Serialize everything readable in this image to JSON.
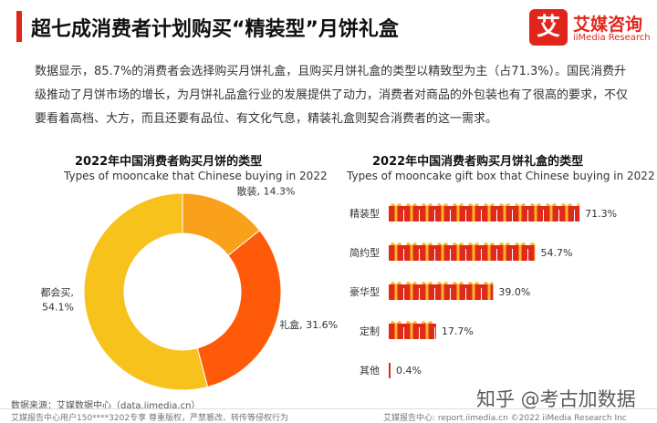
{
  "header": {
    "title": "超七成消费者计划购买“精装型”月饼礼盒",
    "logo_mark": "艾",
    "logo_cn": "艾媒咨询",
    "logo_en": "iiMedia Research"
  },
  "intro": "数据显示，85.7%的消费者会选择购买月饼礼盒，且购买月饼礼盒的类型以精致型为主（占71.3%）。国民消费升级推动了月饼市场的增长，为月饼礼品盒行业的发展提供了动力，消费者对商品的外包装也有了很高的要求，不仅要看着高档、大方，而且还要有品位、有文化气息，精装礼盒则契合消费者的这一需求。",
  "colors": {
    "accent": "#e1251b",
    "orange": "#ff5a0a",
    "light_orange": "#f9a11b",
    "yellow": "#f7c21c",
    "box_red": "#e0291b",
    "box_gold": "#f7b722"
  },
  "chart_data": [
    {
      "type": "pie",
      "title": "2022年中国消费者购买月饼的类型",
      "subtitle": "Types of mooncake that Chinese buying in 2022",
      "labels": [
        "散装",
        "礼盒",
        "都会买"
      ],
      "display_labels": [
        "散装, 14.3%",
        "礼盒, 31.6%",
        "都会买,\n54.1%"
      ],
      "values": [
        14.3,
        31.6,
        54.1
      ],
      "colors": [
        "#f9a11b",
        "#ff5a0a",
        "#f7c21c"
      ],
      "legend": "none"
    },
    {
      "type": "bar",
      "orientation": "horizontal",
      "title": "2022年中国消费者购买月饼礼盒的类型",
      "subtitle": "Types of mooncake gift box that Chinese buying in 2022",
      "categories": [
        "精装型",
        "简约型",
        "豪华型",
        "定制",
        "其他"
      ],
      "values": [
        71.3,
        54.7,
        39.0,
        17.7,
        0.4
      ],
      "value_labels": [
        "71.3%",
        "54.7%",
        "39.0%",
        "17.7%",
        "0.4%"
      ],
      "xlim": [
        0,
        75
      ],
      "grid": false
    }
  ],
  "source": "数据来源：艾媒数据中心（data.iimedia.cn）",
  "footer": {
    "left": "艾媒报告中心用户150****3202专享 尊重版权，严禁篡改、转传等侵权行为",
    "right": "艾媒报告中心: report.iimedia.cn     ©2022  iiMedia Research  Inc"
  },
  "watermark": "知乎 @考古加数据"
}
